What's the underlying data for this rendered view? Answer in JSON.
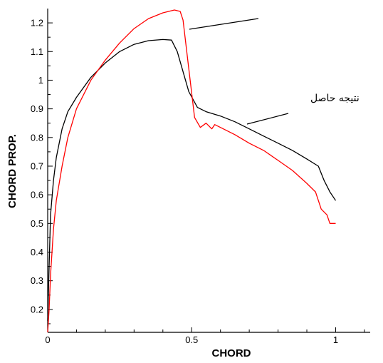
{
  "chart_data": {
    "type": "line",
    "xlabel": "CHORD",
    "ylabel": "CHORD PROP.",
    "xlim": [
      0,
      1.12
    ],
    "ylim": [
      0.12,
      1.25
    ],
    "x_ticks": [
      0,
      0.5,
      1
    ],
    "x_tick_labels": [
      "0",
      "0.5",
      "1"
    ],
    "y_ticks": [
      0.2,
      0.3,
      0.4,
      0.5,
      0.6,
      0.7,
      0.8,
      0.9,
      1.0,
      1.1,
      1.2
    ],
    "y_tick_labels": [
      "0.2",
      "0.3",
      "0.4",
      "0.5",
      "0.6",
      "0.7",
      "0.8",
      "0.9",
      "1",
      "1.1",
      "1.2"
    ],
    "grid": false,
    "legend": "none",
    "series": [
      {
        "color": "#000000",
        "x": [
          0.0,
          0.005,
          0.01,
          0.02,
          0.03,
          0.05,
          0.07,
          0.1,
          0.15,
          0.2,
          0.25,
          0.3,
          0.35,
          0.4,
          0.43,
          0.45,
          0.47,
          0.49,
          0.52,
          0.55,
          0.6,
          0.65,
          0.7,
          0.75,
          0.8,
          0.85,
          0.9,
          0.94,
          0.96,
          0.98,
          1.0
        ],
        "y": [
          0.16,
          0.35,
          0.53,
          0.65,
          0.73,
          0.83,
          0.89,
          0.94,
          1.01,
          1.06,
          1.1,
          1.125,
          1.138,
          1.142,
          1.14,
          1.1,
          1.03,
          0.96,
          0.905,
          0.89,
          0.875,
          0.855,
          0.83,
          0.805,
          0.78,
          0.755,
          0.725,
          0.7,
          0.65,
          0.61,
          0.58
        ]
      },
      {
        "color": "#ff0000",
        "x": [
          0.0,
          0.005,
          0.01,
          0.02,
          0.03,
          0.05,
          0.07,
          0.1,
          0.15,
          0.2,
          0.25,
          0.3,
          0.35,
          0.4,
          0.44,
          0.46,
          0.47,
          0.49,
          0.51,
          0.53,
          0.55,
          0.57,
          0.58,
          0.6,
          0.65,
          0.7,
          0.75,
          0.8,
          0.85,
          0.9,
          0.93,
          0.95,
          0.97,
          0.98,
          1.0
        ],
        "y": [
          0.12,
          0.2,
          0.32,
          0.48,
          0.58,
          0.7,
          0.8,
          0.9,
          1.0,
          1.07,
          1.13,
          1.18,
          1.215,
          1.235,
          1.245,
          1.24,
          1.21,
          1.04,
          0.87,
          0.835,
          0.85,
          0.83,
          0.845,
          0.835,
          0.81,
          0.78,
          0.755,
          0.72,
          0.685,
          0.64,
          0.61,
          0.55,
          0.53,
          0.5,
          0.5
        ]
      }
    ],
    "annotations": [
      {
        "text": ""
      },
      {
        "text": "نتيجه حاصل"
      }
    ]
  }
}
